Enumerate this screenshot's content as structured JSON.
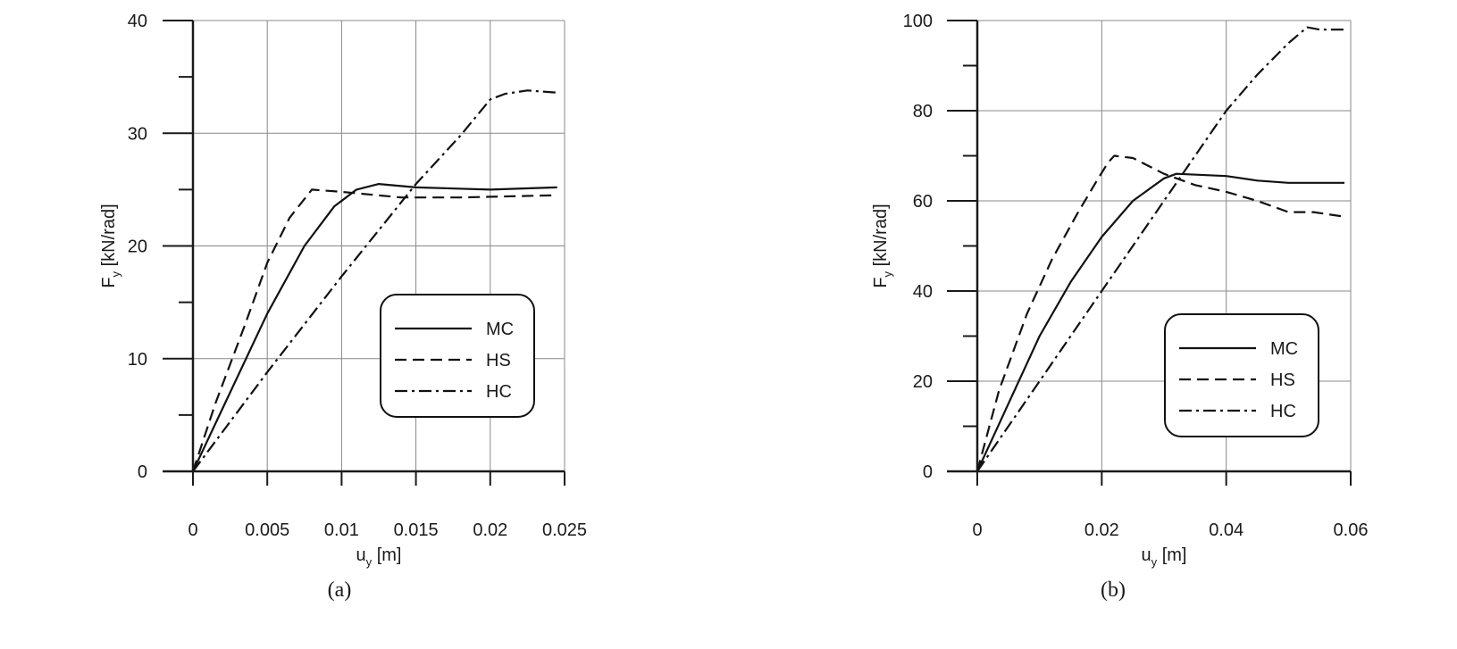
{
  "chart_data": [
    {
      "type": "line",
      "panel_label": "(a)",
      "xlabel": {
        "main": "u",
        "sub": "y",
        "unit": " [m]"
      },
      "ylabel": {
        "main": "F",
        "sub": "y",
        "unit": " [kN/rad]"
      },
      "xlim": [
        0,
        0.025
      ],
      "ylim": [
        0,
        40
      ],
      "xticks": [
        0,
        0.005,
        0.01,
        0.015,
        0.02,
        0.025
      ],
      "xtick_labels": [
        "0",
        "0.005",
        "0.01",
        "0.015",
        "0.02",
        "0.025"
      ],
      "yticks": [
        0,
        10,
        20,
        30,
        40
      ],
      "ytick_labels": [
        "0",
        "10",
        "20",
        "30",
        "40"
      ],
      "grid": true,
      "legend_position": "lower-right",
      "series": [
        {
          "name": "MC",
          "style": "solid",
          "points": [
            [
              0,
              0
            ],
            [
              0.0025,
              7
            ],
            [
              0.005,
              14
            ],
            [
              0.0075,
              20
            ],
            [
              0.0095,
              23.5
            ],
            [
              0.011,
              25
            ],
            [
              0.0125,
              25.5
            ],
            [
              0.015,
              25.2
            ],
            [
              0.02,
              25
            ],
            [
              0.0245,
              25.2
            ]
          ]
        },
        {
          "name": "HS",
          "style": "dashed",
          "points": [
            [
              0,
              0
            ],
            [
              0.0015,
              6
            ],
            [
              0.0035,
              13
            ],
            [
              0.005,
              18.5
            ],
            [
              0.0065,
              22.5
            ],
            [
              0.008,
              25
            ],
            [
              0.01,
              24.8
            ],
            [
              0.014,
              24.3
            ],
            [
              0.018,
              24.3
            ],
            [
              0.0245,
              24.5
            ]
          ]
        },
        {
          "name": "HC",
          "style": "dashdot",
          "points": [
            [
              0,
              0
            ],
            [
              0.005,
              8.8
            ],
            [
              0.01,
              17.3
            ],
            [
              0.015,
              25.5
            ],
            [
              0.018,
              29.8
            ],
            [
              0.02,
              33
            ],
            [
              0.021,
              33.5
            ],
            [
              0.0225,
              33.8
            ],
            [
              0.0245,
              33.6
            ]
          ]
        }
      ]
    },
    {
      "type": "line",
      "panel_label": "(b)",
      "xlabel": {
        "main": "u",
        "sub": "y",
        "unit": " [m]"
      },
      "ylabel": {
        "main": "F",
        "sub": "y",
        "unit": " [kN/rad]"
      },
      "xlim": [
        0,
        0.06
      ],
      "ylim": [
        0,
        100
      ],
      "xticks": [
        0,
        0.02,
        0.04,
        0.06
      ],
      "xtick_labels": [
        "0",
        "0.02",
        "0.04",
        "0.06"
      ],
      "yticks": [
        0,
        20,
        40,
        60,
        80,
        100
      ],
      "ytick_labels": [
        "0",
        "20",
        "40",
        "60",
        "80",
        "100"
      ],
      "grid": true,
      "legend_position": "lower-right",
      "series": [
        {
          "name": "MC",
          "style": "solid",
          "points": [
            [
              0,
              0
            ],
            [
              0.005,
              15
            ],
            [
              0.01,
              30
            ],
            [
              0.015,
              42
            ],
            [
              0.02,
              52
            ],
            [
              0.025,
              60
            ],
            [
              0.03,
              65
            ],
            [
              0.032,
              66
            ],
            [
              0.04,
              65.5
            ],
            [
              0.045,
              64.5
            ],
            [
              0.05,
              64
            ],
            [
              0.059,
              64
            ]
          ]
        },
        {
          "name": "HS",
          "style": "dashed",
          "points": [
            [
              0,
              0
            ],
            [
              0.0035,
              18
            ],
            [
              0.008,
              35
            ],
            [
              0.012,
              47
            ],
            [
              0.016,
              57
            ],
            [
              0.019,
              64
            ],
            [
              0.021,
              68.5
            ],
            [
              0.022,
              70
            ],
            [
              0.025,
              69.5
            ],
            [
              0.03,
              66
            ],
            [
              0.035,
              63.5
            ],
            [
              0.04,
              62
            ],
            [
              0.045,
              60
            ],
            [
              0.05,
              57.5
            ],
            [
              0.054,
              57.5
            ],
            [
              0.059,
              56.5
            ]
          ]
        },
        {
          "name": "HC",
          "style": "dashdot",
          "points": [
            [
              0,
              0
            ],
            [
              0.01,
              20
            ],
            [
              0.02,
              40
            ],
            [
              0.03,
              60
            ],
            [
              0.04,
              80
            ],
            [
              0.045,
              88
            ],
            [
              0.05,
              95
            ],
            [
              0.053,
              98.5
            ],
            [
              0.055,
              98
            ],
            [
              0.059,
              98
            ]
          ]
        }
      ]
    }
  ]
}
